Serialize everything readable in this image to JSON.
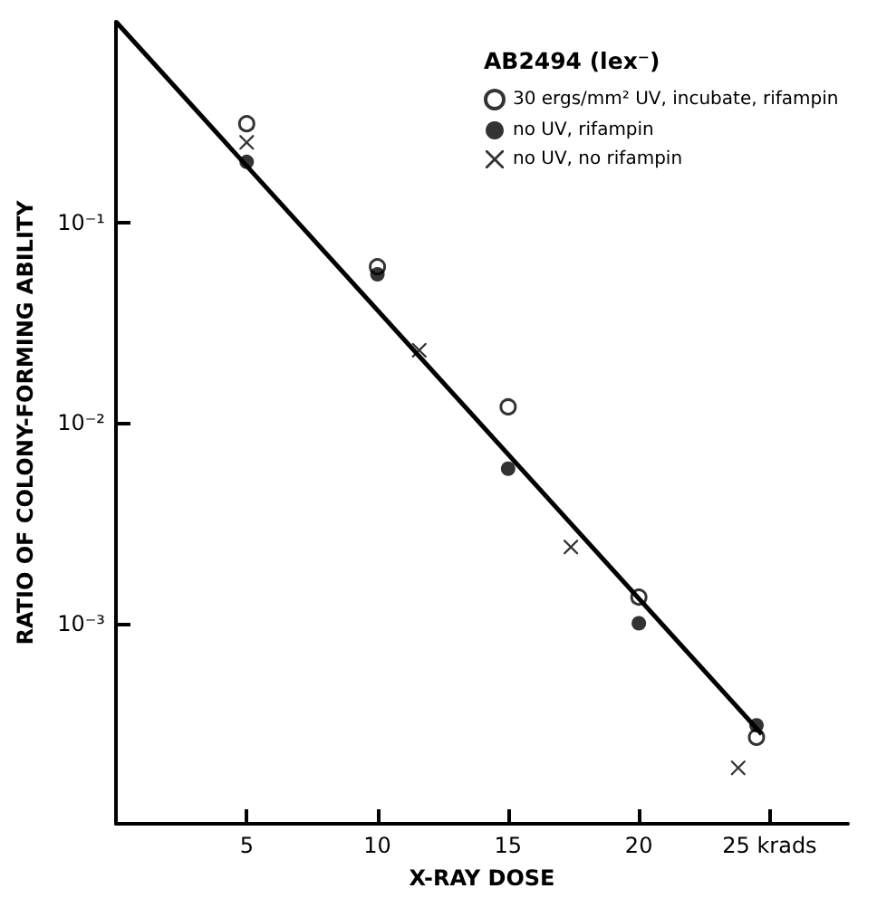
{
  "chart_data": {
    "type": "scatter",
    "xlabel": "X-RAY DOSE",
    "ylabel": "RATIO OF COLONY-FORMING ABILITY",
    "legend_title": "AB2494 (lex⁻)",
    "log": "y",
    "xlim": [
      0,
      28
    ],
    "ylim": [
      0.0001,
      1
    ],
    "xticks": [
      5,
      10,
      15,
      20,
      {
        "value": 25,
        "label": "25 krads"
      }
    ],
    "yticks": [
      {
        "value": 0.1,
        "label": "10⁻¹"
      },
      {
        "value": 0.01,
        "label": "10⁻²"
      },
      {
        "value": 0.001,
        "label": "10⁻³"
      }
    ],
    "grid": false,
    "legend": "top right",
    "series": [
      {
        "name": "30 ergs/mm² UV, incubate, rifampin",
        "color": "#ffffff",
        "marker": "circle",
        "x": [
          5,
          10,
          15,
          20,
          24.5
        ],
        "values": [
          0.31,
          0.06,
          0.012,
          0.00135,
          0.00027
        ]
      },
      {
        "name": "no UV, rifampin",
        "color": "#000000",
        "marker": "circle",
        "x": [
          5,
          10,
          15,
          20,
          24.5
        ],
        "values": [
          0.2,
          0.055,
          0.0059,
          0.001,
          0.00031
        ]
      },
      {
        "name": "no UV, no rifampin",
        "color": "#000000",
        "marker": "cross",
        "x": [
          5,
          11.6,
          17.4,
          23.8
        ],
        "values": [
          0.25,
          0.023,
          0.0024,
          0.00019
        ]
      },
      {
        "type": "line",
        "color": "#000000",
        "marker": "none",
        "line_style": "solid",
        "x": [
          0,
          24.7
        ],
        "values": [
          1,
          0.00028
        ]
      }
    ]
  }
}
